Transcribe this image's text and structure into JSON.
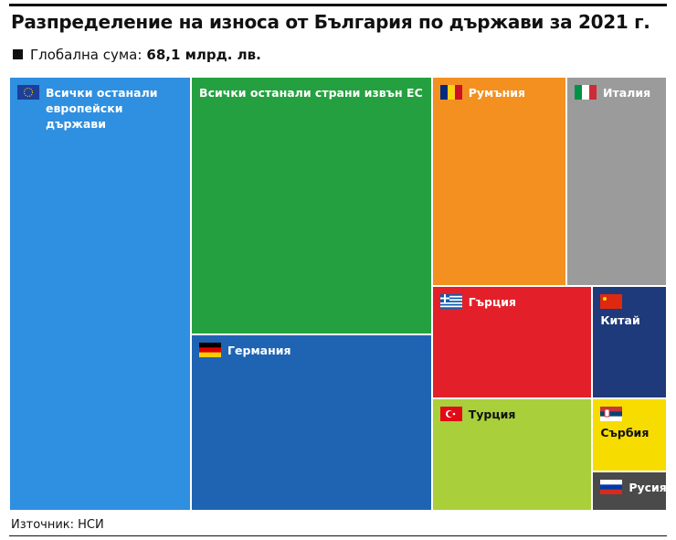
{
  "chart_data": {
    "type": "treemap",
    "title": "Разпределение на износа от България по държави за 2021 г.",
    "subtitle_label": "Глобална сума:",
    "subtitle_value": "68,1 млрд. лв.",
    "source": "Източник: НСИ",
    "categories": [
      "Всички останали европейски държави",
      "Всички останали страни извън ЕС",
      "Германия",
      "Румъния",
      "Италия",
      "Гърция",
      "Турция",
      "Китай",
      "Сърбия",
      "Русия"
    ],
    "values": [
      18.8,
      14.8,
      10.1,
      6.7,
      5.0,
      4.3,
      4.3,
      2.0,
      1.3,
      0.7
    ],
    "colors": [
      "#2f8fe0",
      "#25a040",
      "#1f64b3",
      "#f39020",
      "#9b9b9b",
      "#e3202a",
      "#a9cf3b",
      "#1e3a7a",
      "#f7dc00",
      "#4a4a4a"
    ]
  }
}
